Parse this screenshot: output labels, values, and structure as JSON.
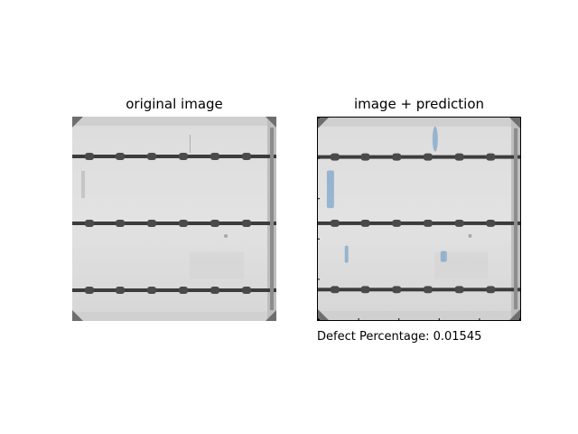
{
  "figure": {
    "left_title": "original image",
    "right_title": "image + prediction",
    "caption": "Defect Percentage: 0.01545"
  },
  "colors": {
    "cell_light": "#e6e6e6",
    "cell_mid": "#cfcfcf",
    "busbar": "#3c3c3c",
    "corner": "#6e6e6e",
    "defect_overlay": "#7ea6c9"
  }
}
